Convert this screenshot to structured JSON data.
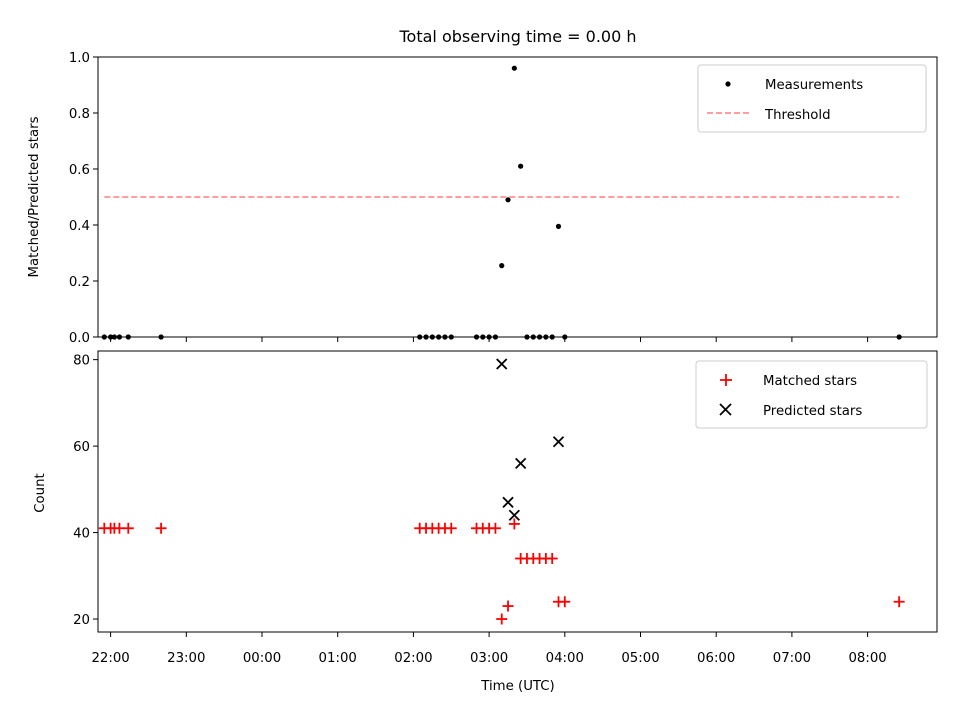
{
  "chart_data": [
    {
      "type": "scatter",
      "title": "Total observing time = 0.00 h",
      "ylabel": "Matched/Predicted stars",
      "xlabel": "",
      "x_range": [
        "21:50",
        "08:55"
      ],
      "ylim": [
        0,
        1.0
      ],
      "yticks": [
        "0.0",
        "0.2",
        "0.4",
        "0.6",
        "0.8",
        "1.0"
      ],
      "legend_position": "top-right",
      "threshold": {
        "label": "Threshold",
        "value": 0.5,
        "x": [
          "21:55",
          "08:25"
        ],
        "color": "#ff7f7f"
      },
      "series": [
        {
          "name": "Measurements",
          "marker": "dot",
          "color": "#000000",
          "points": [
            [
              "21:55",
              0
            ],
            [
              "22:00",
              0
            ],
            [
              "22:03",
              0
            ],
            [
              "22:07",
              0
            ],
            [
              "22:14",
              0
            ],
            [
              "22:40",
              0
            ],
            [
              "02:05",
              0
            ],
            [
              "02:10",
              0
            ],
            [
              "02:15",
              0
            ],
            [
              "02:20",
              0
            ],
            [
              "02:25",
              0
            ],
            [
              "02:30",
              0
            ],
            [
              "02:50",
              0
            ],
            [
              "02:55",
              0
            ],
            [
              "03:00",
              0
            ],
            [
              "03:05",
              0
            ],
            [
              "03:10",
              0.255
            ],
            [
              "03:15",
              0.49
            ],
            [
              "03:20",
              0.96
            ],
            [
              "03:25",
              0.61
            ],
            [
              "03:30",
              0
            ],
            [
              "03:35",
              0
            ],
            [
              "03:40",
              0
            ],
            [
              "03:45",
              0
            ],
            [
              "03:50",
              0
            ],
            [
              "03:55",
              0.395
            ],
            [
              "04:00",
              0
            ],
            [
              "08:25",
              0
            ]
          ]
        }
      ]
    },
    {
      "type": "scatter",
      "title": "",
      "ylabel": "Count",
      "xlabel": "Time (UTC)",
      "x_range": [
        "21:50",
        "08:55"
      ],
      "ylim": [
        17,
        82
      ],
      "yticks": [
        "20",
        "40",
        "60",
        "80"
      ],
      "xticks": [
        "22:00",
        "23:00",
        "00:00",
        "01:00",
        "02:00",
        "03:00",
        "04:00",
        "05:00",
        "06:00",
        "07:00",
        "08:00"
      ],
      "legend_position": "top-right",
      "series": [
        {
          "name": "Matched stars",
          "marker": "plus",
          "color": "#ff0000",
          "points": [
            [
              "21:55",
              41
            ],
            [
              "22:00",
              41
            ],
            [
              "22:03",
              41
            ],
            [
              "22:07",
              41
            ],
            [
              "22:14",
              41
            ],
            [
              "22:40",
              41
            ],
            [
              "02:05",
              41
            ],
            [
              "02:10",
              41
            ],
            [
              "02:15",
              41
            ],
            [
              "02:20",
              41
            ],
            [
              "02:25",
              41
            ],
            [
              "02:30",
              41
            ],
            [
              "02:50",
              41
            ],
            [
              "02:55",
              41
            ],
            [
              "03:00",
              41
            ],
            [
              "03:05",
              41
            ],
            [
              "03:10",
              20
            ],
            [
              "03:15",
              23
            ],
            [
              "03:20",
              42
            ],
            [
              "03:25",
              34
            ],
            [
              "03:30",
              34
            ],
            [
              "03:35",
              34
            ],
            [
              "03:40",
              34
            ],
            [
              "03:45",
              34
            ],
            [
              "03:50",
              34
            ],
            [
              "03:55",
              24
            ],
            [
              "04:00",
              24
            ],
            [
              "08:25",
              24
            ]
          ]
        },
        {
          "name": "Predicted stars",
          "marker": "x",
          "color": "#000000",
          "points": [
            [
              "03:10",
              79
            ],
            [
              "03:15",
              47
            ],
            [
              "03:20",
              44
            ],
            [
              "03:25",
              56
            ],
            [
              "03:55",
              61
            ]
          ]
        }
      ]
    }
  ]
}
